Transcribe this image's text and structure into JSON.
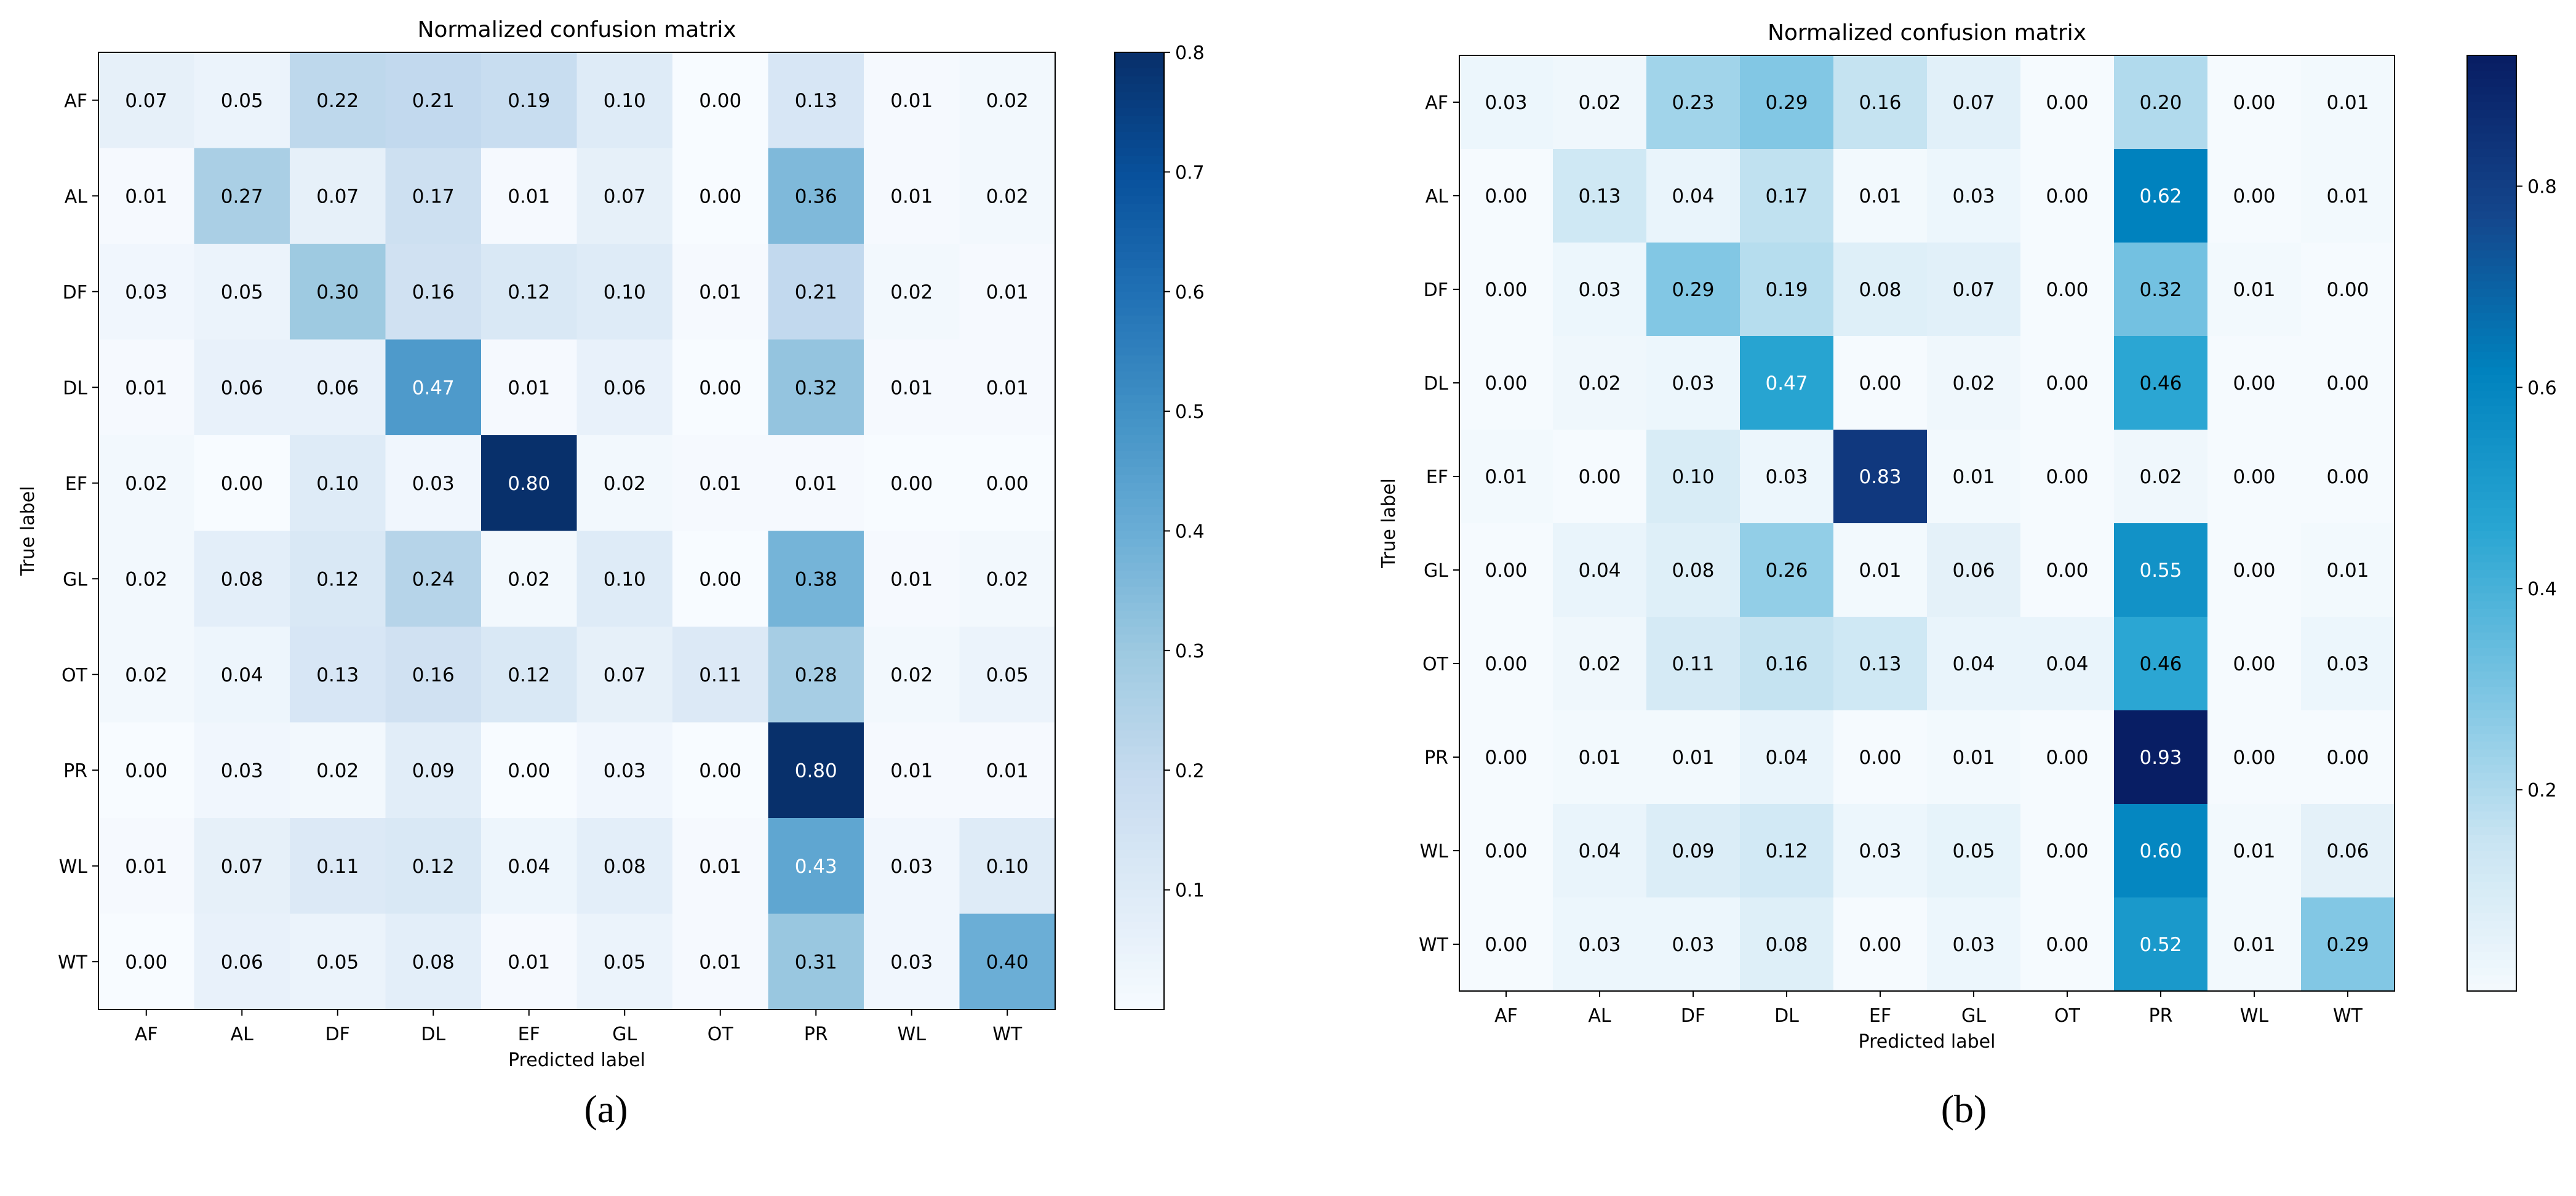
{
  "chart_data": [
    {
      "type": "heatmap",
      "panel": "a",
      "title": "Normalized confusion matrix",
      "xlabel": "Predicted label",
      "ylabel": "True label",
      "x_categories": [
        "AF",
        "AL",
        "DF",
        "DL",
        "EF",
        "GL",
        "OT",
        "PR",
        "WL",
        "WT"
      ],
      "y_categories": [
        "AF",
        "AL",
        "DF",
        "DL",
        "EF",
        "GL",
        "OT",
        "PR",
        "WL",
        "WT"
      ],
      "values": [
        [
          0.07,
          0.05,
          0.22,
          0.21,
          0.19,
          0.1,
          0.0,
          0.13,
          0.01,
          0.02
        ],
        [
          0.01,
          0.27,
          0.07,
          0.17,
          0.01,
          0.07,
          0.0,
          0.36,
          0.01,
          0.02
        ],
        [
          0.03,
          0.05,
          0.3,
          0.16,
          0.12,
          0.1,
          0.01,
          0.21,
          0.02,
          0.01
        ],
        [
          0.01,
          0.06,
          0.06,
          0.47,
          0.01,
          0.06,
          0.0,
          0.32,
          0.01,
          0.01
        ],
        [
          0.02,
          0.0,
          0.1,
          0.03,
          0.8,
          0.02,
          0.01,
          0.01,
          0.0,
          0.0
        ],
        [
          0.02,
          0.08,
          0.12,
          0.24,
          0.02,
          0.1,
          0.0,
          0.38,
          0.01,
          0.02
        ],
        [
          0.02,
          0.04,
          0.13,
          0.16,
          0.12,
          0.07,
          0.11,
          0.28,
          0.02,
          0.05
        ],
        [
          0.0,
          0.03,
          0.02,
          0.09,
          0.0,
          0.03,
          0.0,
          0.8,
          0.01,
          0.01
        ],
        [
          0.01,
          0.07,
          0.11,
          0.12,
          0.04,
          0.08,
          0.01,
          0.43,
          0.03,
          0.1
        ],
        [
          0.0,
          0.06,
          0.05,
          0.08,
          0.01,
          0.05,
          0.01,
          0.31,
          0.03,
          0.4
        ]
      ],
      "colorbar": {
        "range": [
          0.0,
          0.8
        ],
        "ticks": [
          "0.1",
          "0.2",
          "0.3",
          "0.4",
          "0.5",
          "0.6",
          "0.7",
          "0.8"
        ]
      },
      "colormap": "Blues",
      "caption": "(a)"
    },
    {
      "type": "heatmap",
      "panel": "b",
      "title": "Normalized confusion matrix",
      "xlabel": "Predicted label",
      "ylabel": "True label",
      "x_categories": [
        "AF",
        "AL",
        "DF",
        "DL",
        "EF",
        "GL",
        "OT",
        "PR",
        "WL",
        "WT"
      ],
      "y_categories": [
        "AF",
        "AL",
        "DF",
        "DL",
        "EF",
        "GL",
        "OT",
        "PR",
        "WL",
        "WT"
      ],
      "values": [
        [
          0.03,
          0.02,
          0.23,
          0.29,
          0.16,
          0.07,
          0.0,
          0.2,
          0.0,
          0.01
        ],
        [
          0.0,
          0.13,
          0.04,
          0.17,
          0.01,
          0.03,
          0.0,
          0.62,
          0.0,
          0.01
        ],
        [
          0.0,
          0.03,
          0.29,
          0.19,
          0.08,
          0.07,
          0.0,
          0.32,
          0.01,
          0.0
        ],
        [
          0.0,
          0.02,
          0.03,
          0.47,
          0.0,
          0.02,
          0.0,
          0.46,
          0.0,
          0.0
        ],
        [
          0.01,
          0.0,
          0.1,
          0.03,
          0.83,
          0.01,
          0.0,
          0.02,
          0.0,
          0.0
        ],
        [
          0.0,
          0.04,
          0.08,
          0.26,
          0.01,
          0.06,
          0.0,
          0.55,
          0.0,
          0.01
        ],
        [
          0.0,
          0.02,
          0.11,
          0.16,
          0.13,
          0.04,
          0.04,
          0.46,
          0.0,
          0.03
        ],
        [
          0.0,
          0.01,
          0.01,
          0.04,
          0.0,
          0.01,
          0.0,
          0.93,
          0.0,
          0.0
        ],
        [
          0.0,
          0.04,
          0.09,
          0.12,
          0.03,
          0.05,
          0.0,
          0.6,
          0.01,
          0.06
        ],
        [
          0.0,
          0.03,
          0.03,
          0.08,
          0.0,
          0.03,
          0.0,
          0.52,
          0.01,
          0.29
        ]
      ],
      "colorbar": {
        "range": [
          0.0,
          0.93
        ],
        "ticks": [
          "0.2",
          "0.4",
          "0.6",
          "0.8"
        ]
      },
      "colormap": "Blues",
      "caption": "(b)"
    }
  ]
}
